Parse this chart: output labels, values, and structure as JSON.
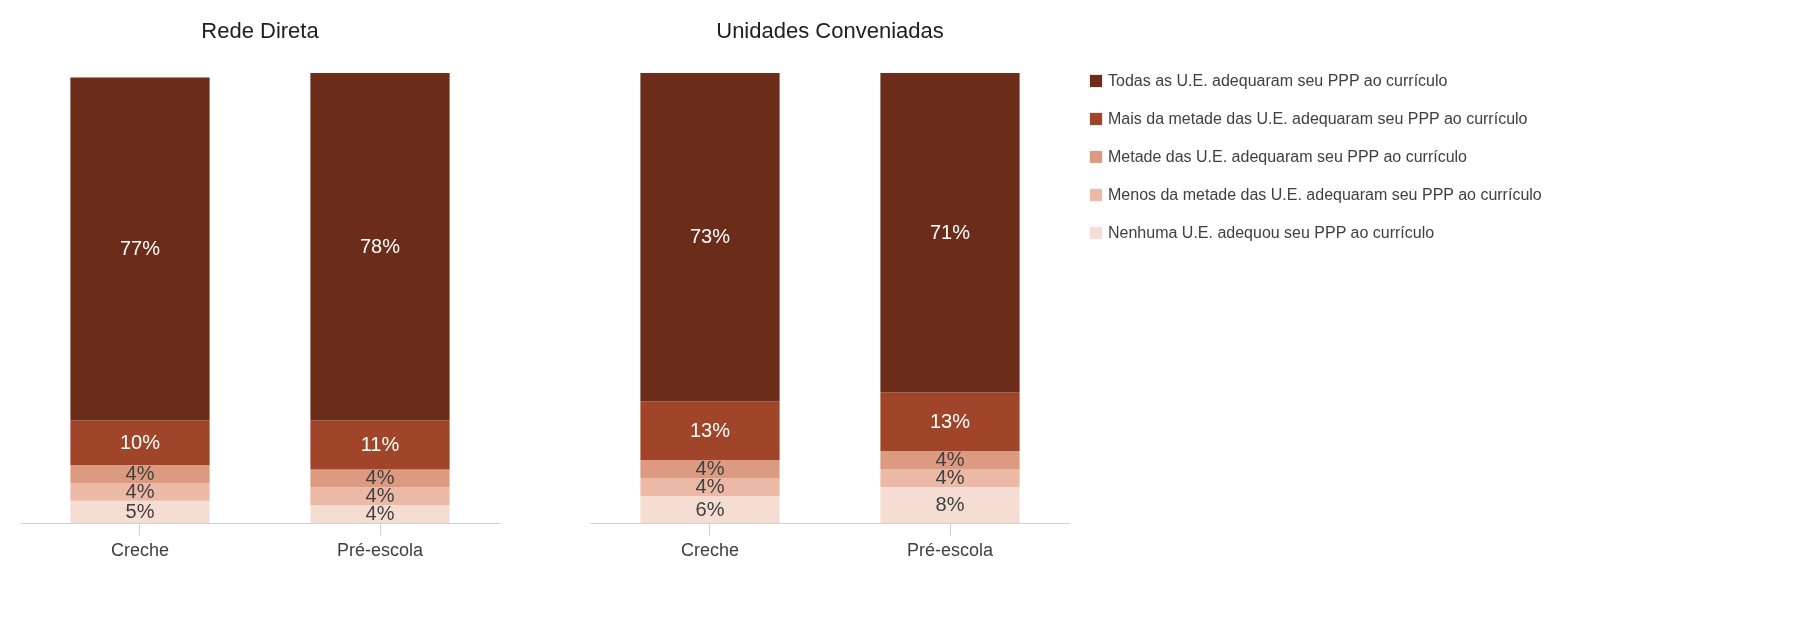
{
  "chart_data": [
    {
      "type": "bar",
      "title": "Rede Direta",
      "categories": [
        "Creche",
        "Pré-escola"
      ],
      "stacked": true,
      "tick_labels": "x",
      "grid": false,
      "legend": false,
      "series": [
        {
          "color": "#f5ddd3",
          "values": [
            5,
            4
          ],
          "value_labels": [
            "5%",
            "4%"
          ]
        },
        {
          "color": "#ebb9a5",
          "values": [
            4,
            4
          ],
          "value_labels": [
            "4%",
            "4%"
          ]
        },
        {
          "color": "#dc9a80",
          "values": [
            4,
            4
          ],
          "value_labels": [
            "4%",
            "4%"
          ]
        },
        {
          "color": "#a0442a",
          "values": [
            10,
            11
          ],
          "value_labels": [
            "10%",
            "11%"
          ]
        },
        {
          "color": "#6b2c1a",
          "values": [
            77,
            78
          ],
          "value_labels": [
            "77%",
            "78%"
          ]
        }
      ]
    },
    {
      "type": "bar",
      "title": "Unidades Conveniadas",
      "categories": [
        "Creche",
        "Pré-escola"
      ],
      "stacked": true,
      "tick_labels": "x",
      "grid": false,
      "legend": "right",
      "series": [
        {
          "name": "Nenhuma U.E. adequou seu PPP ao currículo",
          "color": "#f5ddd3",
          "values": [
            6,
            8
          ],
          "value_labels": [
            "6%",
            "8%"
          ]
        },
        {
          "name": "Menos da metade das U.E. adequaram seu PPP ao currículo",
          "color": "#ebb9a5",
          "values": [
            4,
            4
          ],
          "value_labels": [
            "4%",
            "4%"
          ]
        },
        {
          "name": "Metade das U.E. adequaram seu PPP ao currículo",
          "color": "#dc9a80",
          "values": [
            4,
            4
          ],
          "value_labels": [
            "4%",
            "4%"
          ]
        },
        {
          "name": "Mais da metade das U.E. adequaram seu PPP ao currículo",
          "color": "#a0442a",
          "values": [
            13,
            13
          ],
          "value_labels": [
            "13%",
            "13%"
          ]
        },
        {
          "name": "Todas as U.E. adequaram seu PPP ao currículo",
          "color": "#6b2c1a",
          "values": [
            73,
            71
          ],
          "value_labels": [
            "73%",
            "71%"
          ]
        }
      ]
    }
  ]
}
